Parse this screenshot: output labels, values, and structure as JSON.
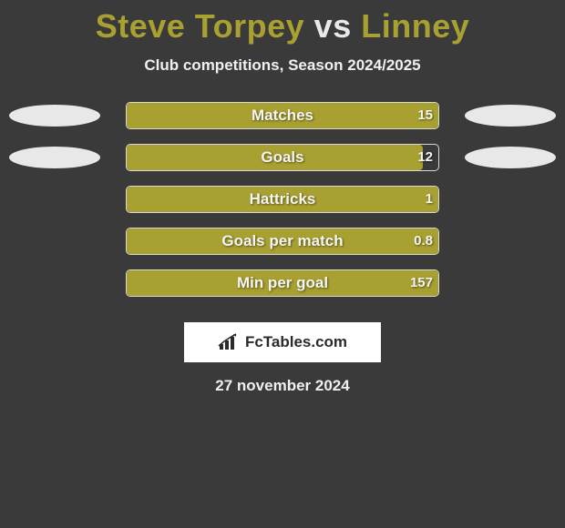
{
  "title": {
    "player1": "Steve Torpey",
    "vs": "vs",
    "player2": "Linney",
    "color_primary": "#a8a030",
    "color_secondary": "#e8e8e8",
    "fontsize": 36
  },
  "subtitle": {
    "text": "Club competitions, Season 2024/2025",
    "color": "#f0f0f0",
    "fontsize": 17
  },
  "chart": {
    "type": "bar",
    "background_color": "#3a3a3a",
    "track_border_color": "#d8d8d8",
    "track_width": 344,
    "label_color": "#f5f5f5",
    "label_fontsize": 17,
    "value_color": "#f5f5f5",
    "value_fontsize": 15,
    "ellipse_color": "#e8e8e8",
    "bar_fill_color": "#a8a030",
    "rows": [
      {
        "label": "Matches",
        "value": "15",
        "fill_pct": 100,
        "show_ellipses": true
      },
      {
        "label": "Goals",
        "value": "12",
        "fill_pct": 95,
        "show_ellipses": true
      },
      {
        "label": "Hattricks",
        "value": "1",
        "fill_pct": 100,
        "show_ellipses": false
      },
      {
        "label": "Goals per match",
        "value": "0.8",
        "fill_pct": 100,
        "show_ellipses": false
      },
      {
        "label": "Min per goal",
        "value": "157",
        "fill_pct": 100,
        "show_ellipses": false
      }
    ]
  },
  "logo": {
    "text": "FcTables.com",
    "box_bg": "#ffffff",
    "text_color": "#2a2a2a",
    "icon_name": "bar-chart-icon"
  },
  "date": {
    "text": "27 november 2024",
    "color": "#f0f0f0",
    "fontsize": 17
  }
}
